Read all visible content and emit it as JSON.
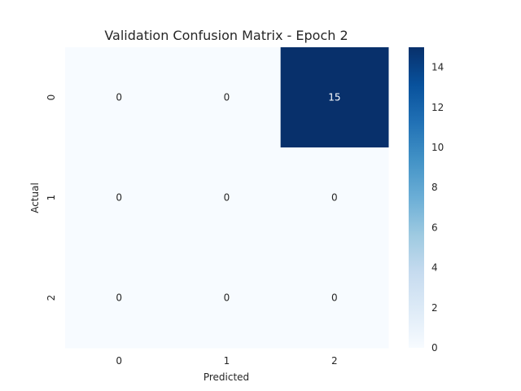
{
  "chart_data": {
    "type": "heatmap",
    "title": "Validation Confusion Matrix - Epoch 2",
    "xlabel": "Predicted",
    "ylabel": "Actual",
    "x_categories": [
      "0",
      "1",
      "2"
    ],
    "y_categories": [
      "0",
      "1",
      "2"
    ],
    "values": [
      [
        0,
        0,
        15
      ],
      [
        0,
        0,
        0
      ],
      [
        0,
        0,
        0
      ]
    ],
    "colorbar": {
      "min": 0,
      "max": 15,
      "ticks": [
        0,
        2,
        4,
        6,
        8,
        10,
        12,
        14
      ]
    },
    "colormap": "Blues",
    "colors": {
      "low": "#f7fbff",
      "high": "#08306b",
      "text_on_dark": "#ffffff",
      "text_on_light": "#262626"
    }
  }
}
